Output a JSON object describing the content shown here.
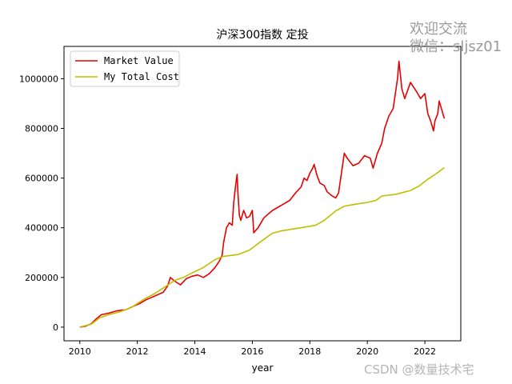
{
  "watermark_top": [
    "欢迎交流",
    "微信：sljsz01"
  ],
  "watermark_bottom": "CSDN @数量技术宅",
  "chart_data": {
    "type": "line",
    "title": "沪深300指数 定投",
    "xlabel": "year",
    "ylabel": "",
    "xlim": [
      2009.45,
      2023.25
    ],
    "ylim": [
      -55000,
      1130000
    ],
    "x_ticks": [
      2010,
      2012,
      2014,
      2016,
      2018,
      2020,
      2022
    ],
    "x_tick_labels": [
      "2010",
      "2012",
      "2014",
      "2016",
      "2018",
      "2020",
      "2022"
    ],
    "y_ticks": [
      0,
      200000,
      400000,
      600000,
      800000,
      1000000
    ],
    "y_tick_labels": [
      "0",
      "200000",
      "400000",
      "600000",
      "800000",
      "1000000"
    ],
    "grid": false,
    "legend_position": "top-left",
    "series": [
      {
        "name": "Market Value",
        "color": "#e60000",
        "points": [
          [
            2010.0,
            0
          ],
          [
            2010.2,
            4000
          ],
          [
            2010.4,
            14000
          ],
          [
            2010.6,
            36000
          ],
          [
            2010.75,
            50000
          ],
          [
            2011.0,
            56000
          ],
          [
            2011.3,
            66000
          ],
          [
            2011.6,
            70000
          ],
          [
            2011.9,
            86000
          ],
          [
            2012.1,
            96000
          ],
          [
            2012.3,
            110000
          ],
          [
            2012.6,
            125000
          ],
          [
            2012.9,
            140000
          ],
          [
            2013.05,
            165000
          ],
          [
            2013.15,
            200000
          ],
          [
            2013.3,
            185000
          ],
          [
            2013.5,
            170000
          ],
          [
            2013.7,
            195000
          ],
          [
            2013.9,
            205000
          ],
          [
            2014.1,
            210000
          ],
          [
            2014.3,
            200000
          ],
          [
            2014.5,
            215000
          ],
          [
            2014.7,
            240000
          ],
          [
            2014.85,
            265000
          ],
          [
            2014.95,
            290000
          ],
          [
            2015.0,
            340000
          ],
          [
            2015.1,
            400000
          ],
          [
            2015.2,
            420000
          ],
          [
            2015.3,
            410000
          ],
          [
            2015.35,
            500000
          ],
          [
            2015.43,
            580000
          ],
          [
            2015.47,
            615000
          ],
          [
            2015.5,
            540000
          ],
          [
            2015.55,
            450000
          ],
          [
            2015.6,
            430000
          ],
          [
            2015.7,
            470000
          ],
          [
            2015.8,
            440000
          ],
          [
            2015.9,
            445000
          ],
          [
            2016.0,
            470000
          ],
          [
            2016.05,
            380000
          ],
          [
            2016.2,
            400000
          ],
          [
            2016.4,
            440000
          ],
          [
            2016.7,
            470000
          ],
          [
            2017.0,
            490000
          ],
          [
            2017.3,
            510000
          ],
          [
            2017.5,
            540000
          ],
          [
            2017.7,
            565000
          ],
          [
            2017.8,
            600000
          ],
          [
            2017.9,
            590000
          ],
          [
            2018.0,
            620000
          ],
          [
            2018.1,
            640000
          ],
          [
            2018.15,
            655000
          ],
          [
            2018.25,
            610000
          ],
          [
            2018.35,
            580000
          ],
          [
            2018.5,
            570000
          ],
          [
            2018.6,
            545000
          ],
          [
            2018.75,
            530000
          ],
          [
            2018.9,
            520000
          ],
          [
            2019.0,
            540000
          ],
          [
            2019.1,
            620000
          ],
          [
            2019.2,
            700000
          ],
          [
            2019.3,
            680000
          ],
          [
            2019.5,
            650000
          ],
          [
            2019.7,
            660000
          ],
          [
            2019.9,
            690000
          ],
          [
            2020.1,
            680000
          ],
          [
            2020.2,
            640000
          ],
          [
            2020.35,
            700000
          ],
          [
            2020.5,
            740000
          ],
          [
            2020.6,
            800000
          ],
          [
            2020.75,
            850000
          ],
          [
            2020.9,
            880000
          ],
          [
            2021.0,
            960000
          ],
          [
            2021.05,
            1000000
          ],
          [
            2021.1,
            1070000
          ],
          [
            2021.2,
            960000
          ],
          [
            2021.3,
            920000
          ],
          [
            2021.5,
            985000
          ],
          [
            2021.7,
            950000
          ],
          [
            2021.85,
            920000
          ],
          [
            2022.0,
            940000
          ],
          [
            2022.1,
            860000
          ],
          [
            2022.2,
            830000
          ],
          [
            2022.3,
            790000
          ],
          [
            2022.35,
            830000
          ],
          [
            2022.45,
            860000
          ],
          [
            2022.5,
            910000
          ],
          [
            2022.6,
            870000
          ],
          [
            2022.65,
            850000
          ],
          [
            2022.68,
            840000
          ]
        ]
      },
      {
        "name": "My Total Cost",
        "color": "#bfbf00",
        "points": [
          [
            2010.0,
            0
          ],
          [
            2010.4,
            12000
          ],
          [
            2010.7,
            38000
          ],
          [
            2011.0,
            50000
          ],
          [
            2011.4,
            62000
          ],
          [
            2011.8,
            80000
          ],
          [
            2012.2,
            110000
          ],
          [
            2012.6,
            135000
          ],
          [
            2013.0,
            165000
          ],
          [
            2013.3,
            188000
          ],
          [
            2013.6,
            200000
          ],
          [
            2013.9,
            218000
          ],
          [
            2014.3,
            240000
          ],
          [
            2014.7,
            272000
          ],
          [
            2015.0,
            285000
          ],
          [
            2015.5,
            292000
          ],
          [
            2015.9,
            310000
          ],
          [
            2016.3,
            345000
          ],
          [
            2016.7,
            378000
          ],
          [
            2017.0,
            387000
          ],
          [
            2017.4,
            395000
          ],
          [
            2017.8,
            402000
          ],
          [
            2018.2,
            410000
          ],
          [
            2018.5,
            430000
          ],
          [
            2018.9,
            468000
          ],
          [
            2019.2,
            487000
          ],
          [
            2019.6,
            495000
          ],
          [
            2020.0,
            502000
          ],
          [
            2020.3,
            510000
          ],
          [
            2020.5,
            528000
          ],
          [
            2021.0,
            535000
          ],
          [
            2021.5,
            550000
          ],
          [
            2021.8,
            568000
          ],
          [
            2022.1,
            595000
          ],
          [
            2022.4,
            618000
          ],
          [
            2022.68,
            642000
          ]
        ]
      }
    ]
  }
}
